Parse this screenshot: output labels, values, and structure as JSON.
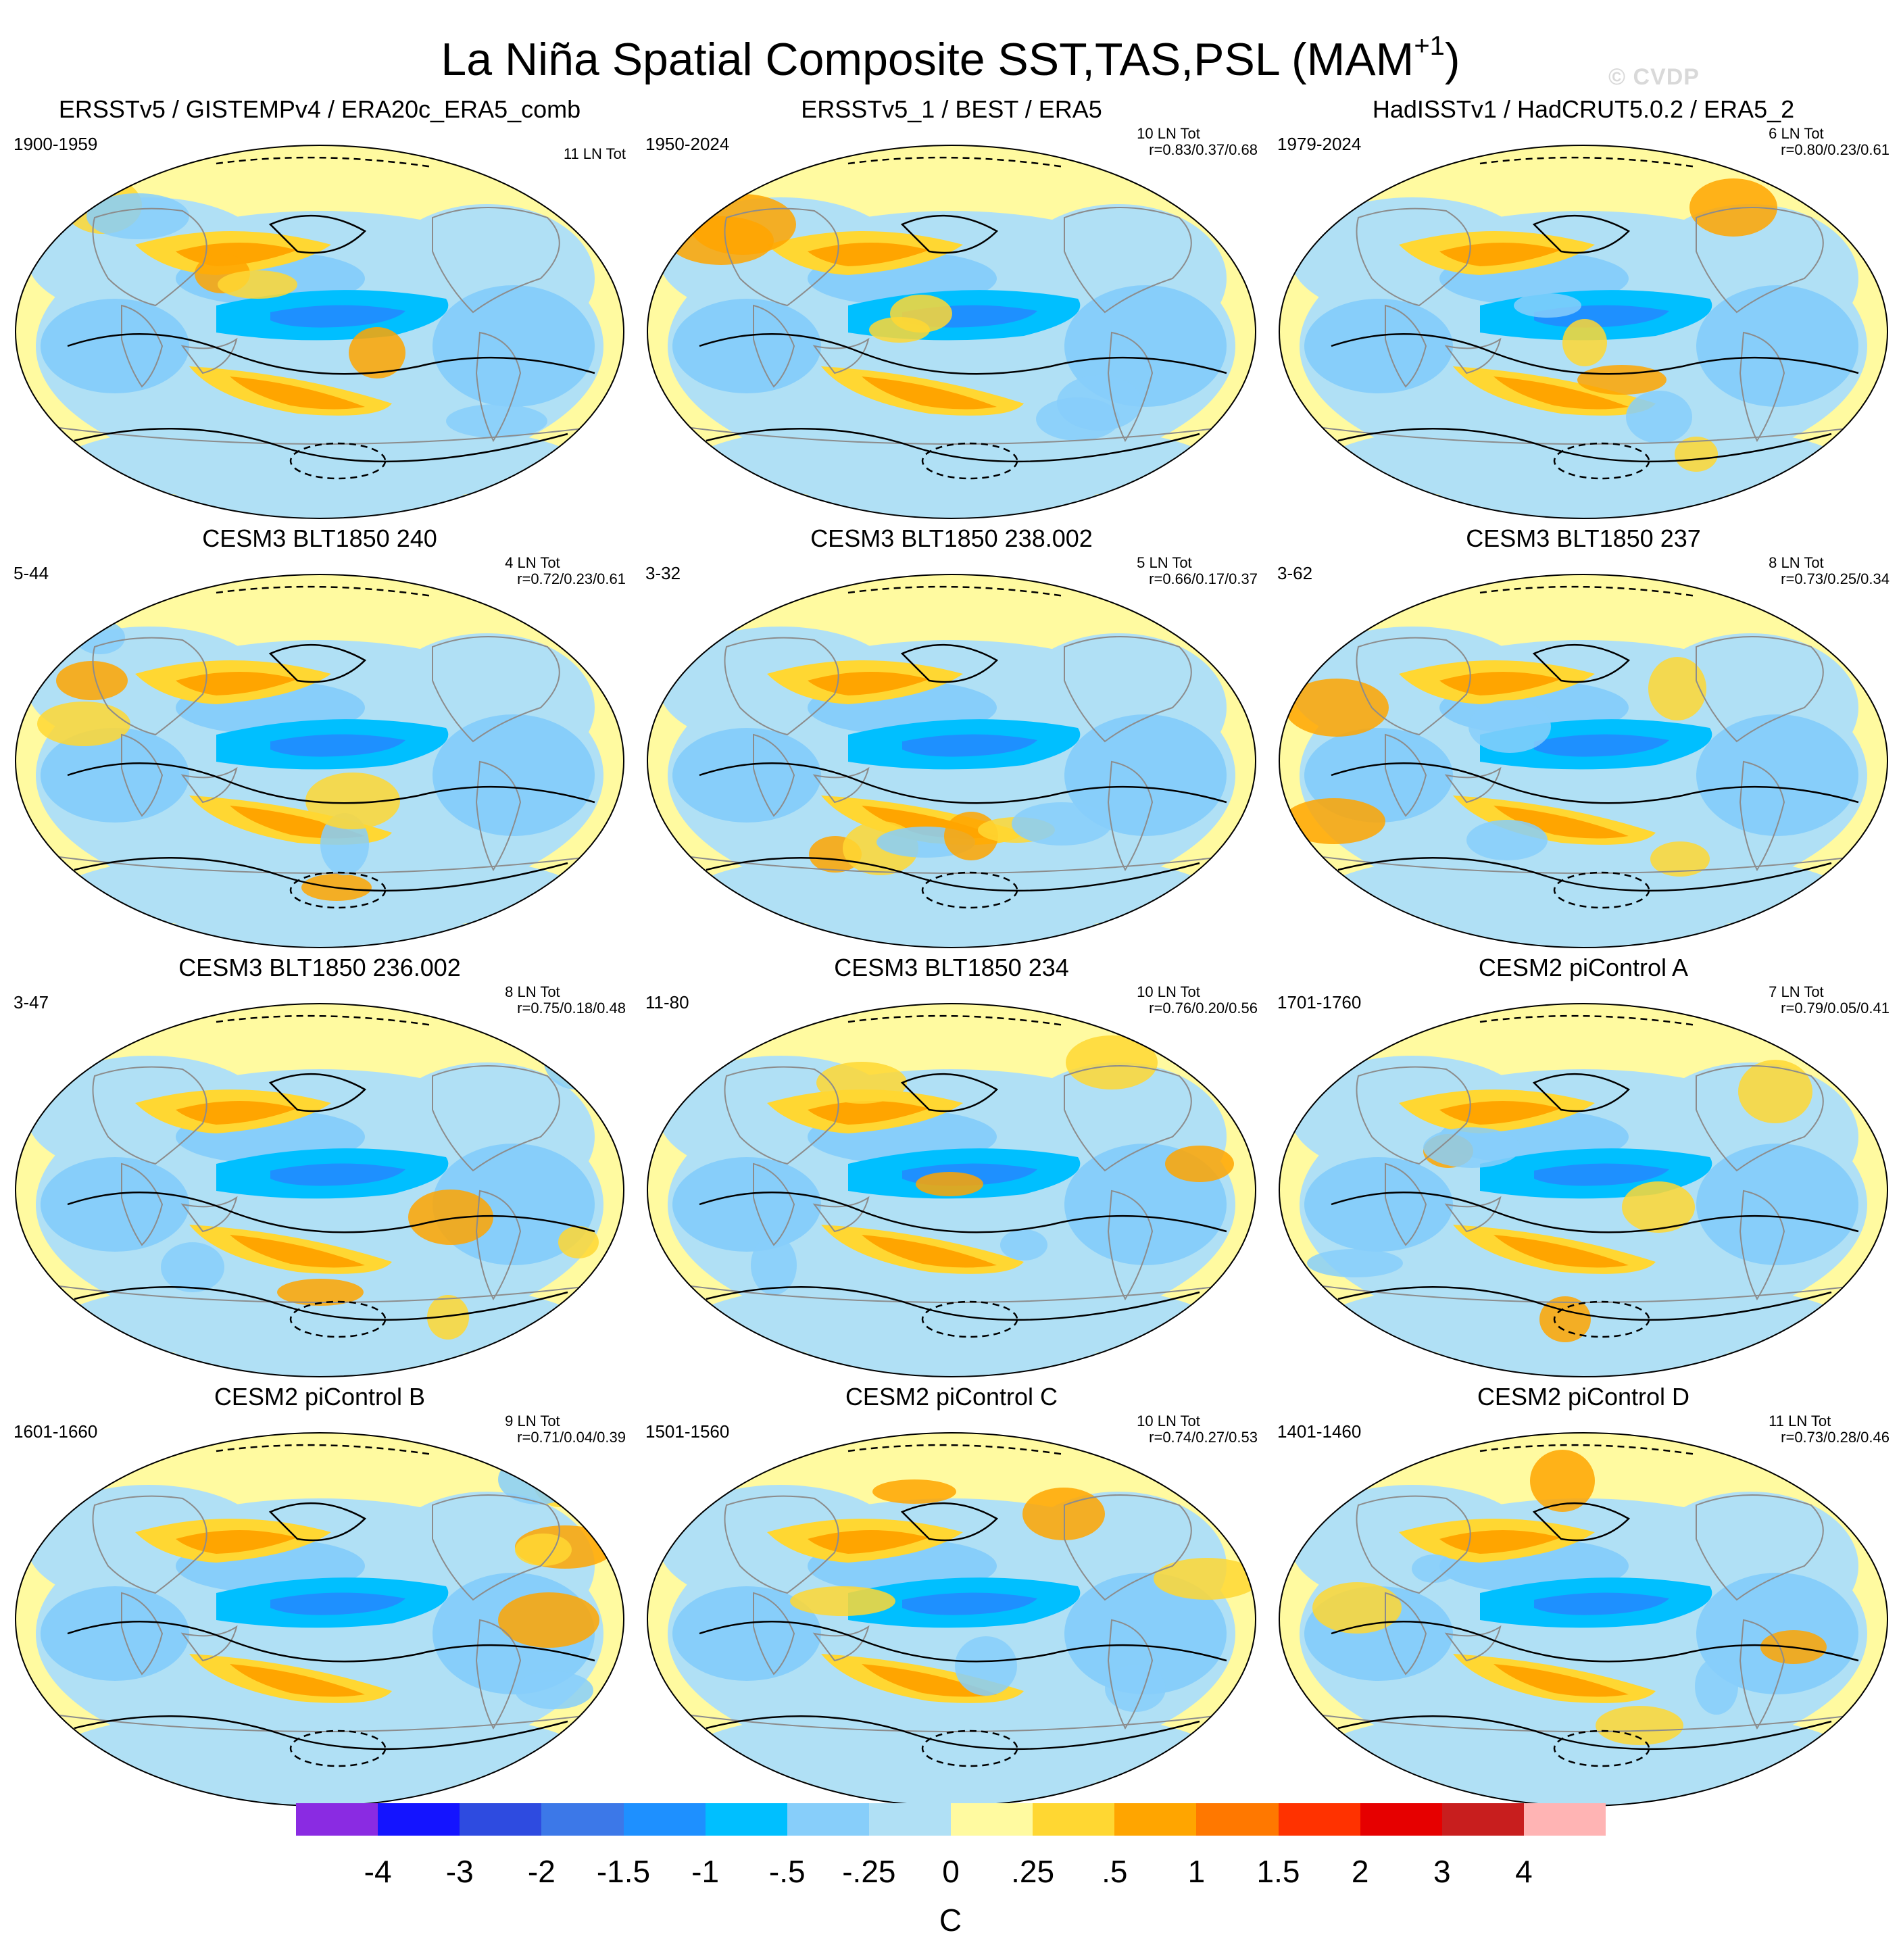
{
  "figure": {
    "title_main": "La Niña Spatial Composite SST,TAS,PSL (MAM",
    "title_sup": "+1",
    "title_end": ")",
    "watermark": "© CVDP"
  },
  "panels": [
    {
      "title": "ERSSTv5 / GISTEMPv4 / ERA20c_ERA5_comb",
      "years": "1900-1959",
      "events": "11 LN Tot",
      "corr": ""
    },
    {
      "title": "ERSSTv5_1 / BEST / ERA5",
      "years": "1950-2024",
      "events": "10 LN Tot",
      "corr": "r=0.83/0.37/0.68"
    },
    {
      "title": "HadISSTv1 / HadCRUT5.0.2 / ERA5_2",
      "years": "1979-2024",
      "events": "6 LN Tot",
      "corr": "r=0.80/0.23/0.61"
    },
    {
      "title": "CESM3 BLT1850 240",
      "years": "5-44",
      "events": "4 LN Tot",
      "corr": "r=0.72/0.23/0.61"
    },
    {
      "title": "CESM3 BLT1850 238.002",
      "years": "3-32",
      "events": "5 LN Tot",
      "corr": "r=0.66/0.17/0.37"
    },
    {
      "title": "CESM3 BLT1850 237",
      "years": "3-62",
      "events": "8 LN Tot",
      "corr": "r=0.73/0.25/0.34"
    },
    {
      "title": "CESM3 BLT1850 236.002",
      "years": "3-47",
      "events": "8 LN Tot",
      "corr": "r=0.75/0.18/0.48"
    },
    {
      "title": "CESM3 BLT1850 234",
      "years": "11-80",
      "events": "10 LN Tot",
      "corr": "r=0.76/0.20/0.56"
    },
    {
      "title": "CESM2 piControl A",
      "years": "1701-1760",
      "events": "7 LN Tot",
      "corr": "r=0.79/0.05/0.41"
    },
    {
      "title": "CESM2 piControl B",
      "years": "1601-1660",
      "events": "9 LN Tot",
      "corr": "r=0.71/0.04/0.39"
    },
    {
      "title": "CESM2 piControl C",
      "years": "1501-1560",
      "events": "10 LN Tot",
      "corr": "r=0.74/0.27/0.53"
    },
    {
      "title": "CESM2 piControl D",
      "years": "1401-1460",
      "events": "11 LN Tot",
      "corr": "r=0.73/0.28/0.46"
    }
  ],
  "colorbar": {
    "colors": [
      "#8a2be2",
      "#1414ff",
      "#2e4be0",
      "#3c78e8",
      "#1e90ff",
      "#00bfff",
      "#87cefa",
      "#b0e0f5",
      "#fffaa0",
      "#ffd732",
      "#ffa500",
      "#ff7800",
      "#ff3200",
      "#e60000",
      "#c81e1e",
      "#ffb4b4"
    ],
    "labels": [
      "-4",
      "-3",
      "-2",
      "-1.5",
      "-1",
      "-.5",
      "-.25",
      "0",
      ".25",
      ".5",
      "1",
      "1.5",
      "2",
      "3",
      "4"
    ],
    "units": "C"
  },
  "palette": {
    "ocean_base": "#fffaa0",
    "light_blue": "#b0e0f5",
    "blue": "#87cefa",
    "strong_blue": "#00bfff",
    "deep_blue": "#1e90ff",
    "yellow": "#ffd732",
    "orange": "#ffa500",
    "dark_orange": "#ff7800"
  }
}
